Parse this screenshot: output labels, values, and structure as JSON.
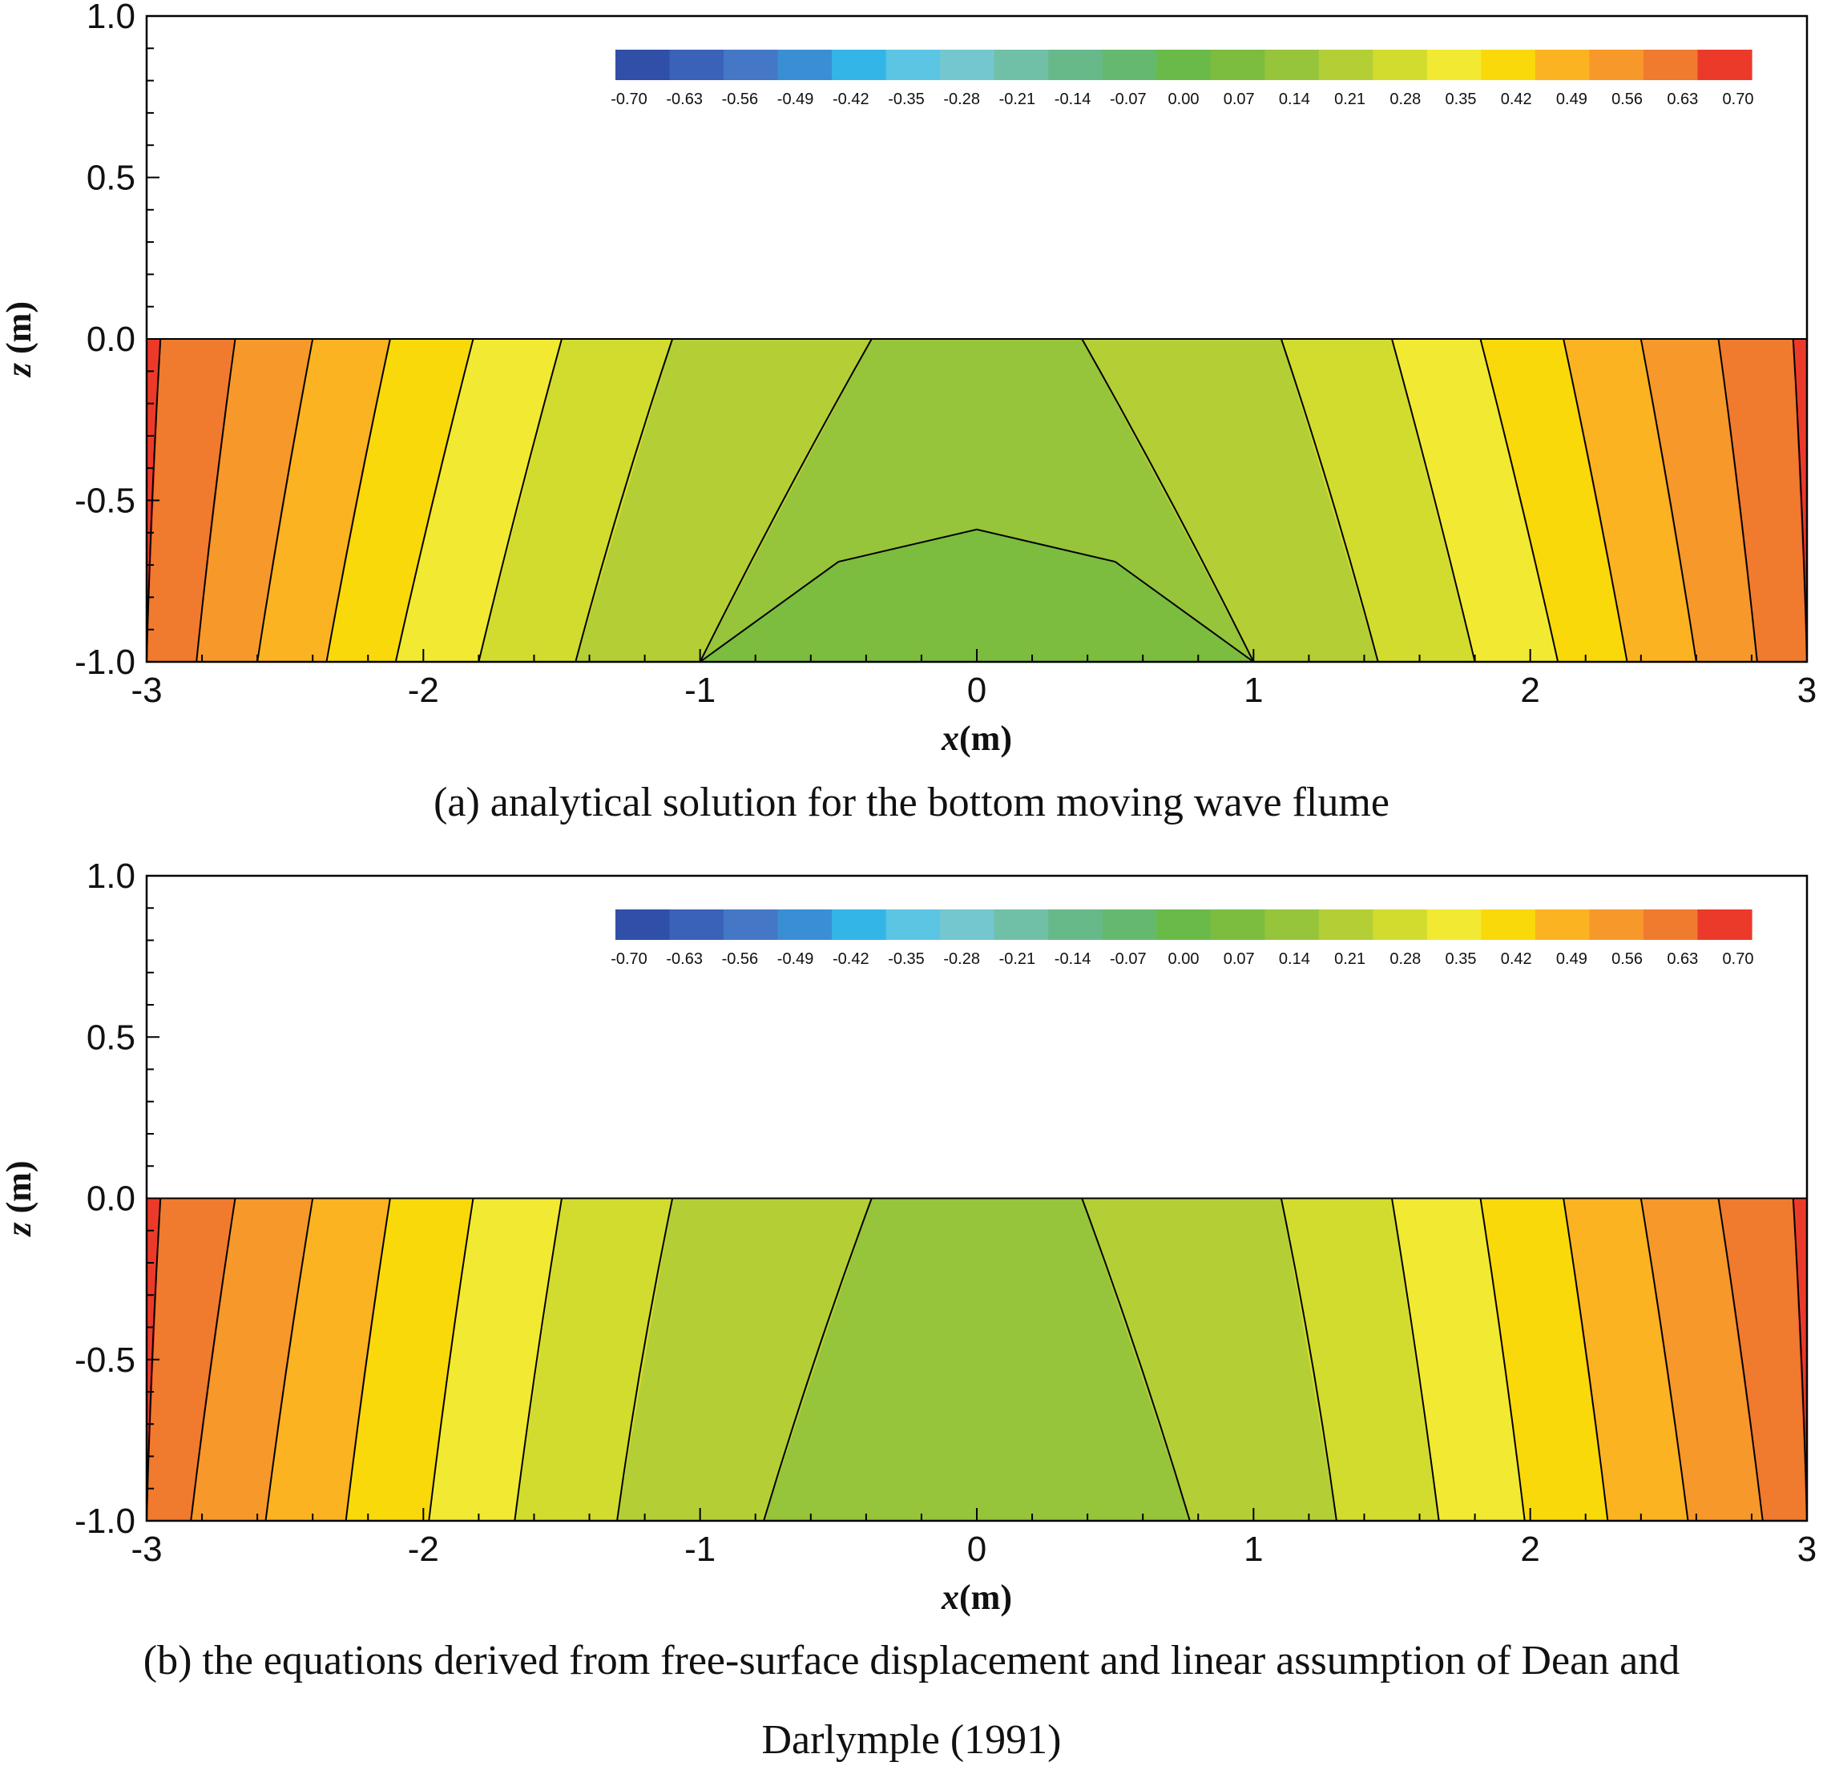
{
  "chart_data": [
    {
      "type": "heatmap",
      "panel": "a",
      "caption": "(a) analytical solution for the bottom moving wave flume",
      "xlabel_var": "x",
      "xlabel_unit": "(m)",
      "ylabel_var": "z",
      "ylabel_unit": " (m)",
      "xlim": [
        -3,
        3
      ],
      "ylim": [
        -1,
        1
      ],
      "xticks": [
        "-3",
        "-2",
        "-1",
        "0",
        "1",
        "2",
        "3"
      ],
      "yticks": [
        "1.0",
        "0.5",
        "0.0",
        "-0.5",
        "-1.0"
      ],
      "domain_z": [
        -1,
        0
      ],
      "colorbar_labels": [
        "-0.70",
        "-0.63",
        "-0.56",
        "-0.49",
        "-0.42",
        "-0.35",
        "-0.28",
        "-0.21",
        "-0.14",
        "-0.07",
        "0.00",
        "0.07",
        "0.14",
        "0.21",
        "0.28",
        "0.35",
        "0.42",
        "0.49",
        "0.56",
        "0.63",
        "0.70"
      ],
      "colormap": [
        "#3050a8",
        "#3a62b8",
        "#4478c6",
        "#3a8fd4",
        "#33b5e8",
        "#5cc5e4",
        "#74c6cf",
        "#6fc0a7",
        "#68b98a",
        "#65b96f",
        "#6aba4a",
        "#7cbc3e",
        "#96c43a",
        "#b4cf36",
        "#d2dc2e",
        "#f2e933",
        "#fad90a",
        "#fbb321",
        "#f6982a",
        "#f07a2e",
        "#ec3a2a"
      ],
      "contour_levels": [
        0.21,
        0.28,
        0.35,
        0.42,
        0.49,
        0.56,
        0.63,
        0.7
      ],
      "boundary_x_at_surface": [
        [
          -0.38,
          0.38
        ],
        [
          -1.1,
          1.1
        ],
        [
          -1.5,
          1.5
        ],
        [
          -1.82,
          1.82
        ],
        [
          -2.12,
          2.12
        ],
        [
          -2.4,
          2.4
        ],
        [
          -2.68,
          2.68
        ],
        [
          -2.95,
          2.95
        ]
      ],
      "boundary_x_at_bottom": [
        [
          -1.0,
          1.0
        ],
        [
          -1.45,
          1.45
        ],
        [
          -1.8,
          1.8
        ],
        [
          -2.1,
          2.1
        ],
        [
          -2.35,
          2.35
        ],
        [
          -2.6,
          2.6
        ],
        [
          -2.82,
          2.82
        ],
        [
          -3.0,
          3.0
        ]
      ],
      "core_contour": {
        "level": 0.14,
        "x": [
          -1.0,
          -0.5,
          0.0,
          0.5,
          1.0
        ],
        "z": [
          -1.0,
          -0.69,
          -0.59,
          -0.69,
          -1.0
        ]
      }
    },
    {
      "type": "heatmap",
      "panel": "b",
      "caption_line1": "(b) the equations derived from free-surface displacement and linear assumption of Dean and",
      "caption_line2": "Darlymple (1991)",
      "xlabel_var": "x",
      "xlabel_unit": "(m)",
      "ylabel_var": "z",
      "ylabel_unit": " (m)",
      "xlim": [
        -3,
        3
      ],
      "ylim": [
        -1,
        1
      ],
      "xticks": [
        "-3",
        "-2",
        "-1",
        "0",
        "1",
        "2",
        "3"
      ],
      "yticks": [
        "1.0",
        "0.5",
        "0.0",
        "-0.5",
        "-1.0"
      ],
      "domain_z": [
        -1,
        0
      ],
      "colorbar_labels": [
        "-0.70",
        "-0.63",
        "-0.56",
        "-0.49",
        "-0.42",
        "-0.35",
        "-0.28",
        "-0.21",
        "-0.14",
        "-0.07",
        "0.00",
        "0.07",
        "0.14",
        "0.21",
        "0.28",
        "0.35",
        "0.42",
        "0.49",
        "0.56",
        "0.63",
        "0.70"
      ],
      "contour_levels": [
        0.21,
        0.28,
        0.35,
        0.42,
        0.49,
        0.56,
        0.63,
        0.7
      ],
      "boundary_x_at_surface": [
        [
          -0.38,
          0.38
        ],
        [
          -1.1,
          1.1
        ],
        [
          -1.5,
          1.5
        ],
        [
          -1.82,
          1.82
        ],
        [
          -2.12,
          2.12
        ],
        [
          -2.4,
          2.4
        ],
        [
          -2.68,
          2.68
        ],
        [
          -2.95,
          2.95
        ]
      ],
      "boundary_x_at_bottom": [
        [
          -0.77,
          0.77
        ],
        [
          -1.3,
          1.3
        ],
        [
          -1.67,
          1.67
        ],
        [
          -1.98,
          1.98
        ],
        [
          -2.28,
          2.28
        ],
        [
          -2.57,
          2.57
        ],
        [
          -2.84,
          2.84
        ],
        [
          -3.0,
          3.0
        ]
      ]
    }
  ]
}
